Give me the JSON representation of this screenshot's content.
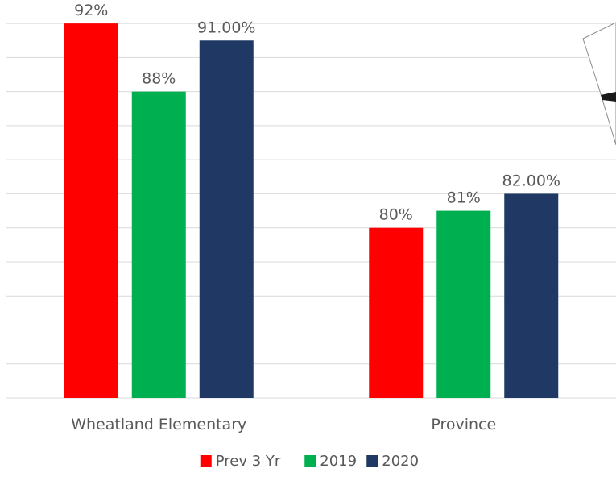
{
  "chart_data": {
    "type": "bar",
    "categories": [
      "Wheatland Elementary",
      "Province"
    ],
    "series": [
      {
        "name": "Prev 3 Yr",
        "values": [
          92,
          80
        ],
        "labels": [
          "92%",
          "80%"
        ],
        "color": "#ff0000"
      },
      {
        "name": "2019",
        "values": [
          88,
          81
        ],
        "labels": [
          "88%",
          "81%"
        ],
        "color": "#00b050"
      },
      {
        "name": "2020",
        "values": [
          91,
          82
        ],
        "labels": [
          "91.00%",
          "82.00%"
        ],
        "color": "#203864"
      }
    ],
    "ylim": [
      70,
      93
    ],
    "grid": true,
    "legend_position": "bottom",
    "title": "",
    "xlabel": "",
    "ylabel": ""
  }
}
